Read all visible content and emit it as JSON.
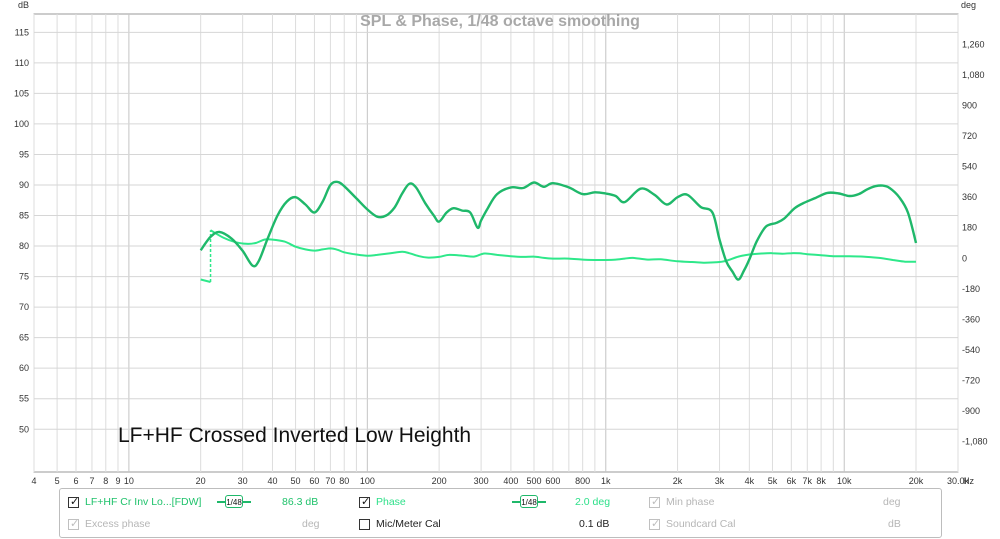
{
  "chart_data": {
    "type": "line",
    "title": "SPL & Phase, 1/48 octave smoothing",
    "annotation": "LF+HF Crossed Inverted Low Heighth",
    "x_unit": "Hz",
    "y_left_unit": "dB",
    "y_right_unit": "deg",
    "x_scale": "log",
    "xlim": [
      4,
      30000
    ],
    "ylim_left": [
      43,
      118
    ],
    "ylim_right": [
      -1260,
      1440
    ],
    "grid": true,
    "x_ticks": [
      {
        "v": 4,
        "label": "4"
      },
      {
        "v": 5,
        "label": "5"
      },
      {
        "v": 6,
        "label": "6"
      },
      {
        "v": 7,
        "label": "7"
      },
      {
        "v": 8,
        "label": "8"
      },
      {
        "v": 9,
        "label": "9"
      },
      {
        "v": 10,
        "label": "10"
      },
      {
        "v": 20,
        "label": "20"
      },
      {
        "v": 30,
        "label": "30"
      },
      {
        "v": 40,
        "label": "40"
      },
      {
        "v": 50,
        "label": "50"
      },
      {
        "v": 60,
        "label": "60"
      },
      {
        "v": 70,
        "label": "70"
      },
      {
        "v": 80,
        "label": "80"
      },
      {
        "v": 100,
        "label": "100"
      },
      {
        "v": 200,
        "label": "200"
      },
      {
        "v": 300,
        "label": "300"
      },
      {
        "v": 400,
        "label": "400"
      },
      {
        "v": 500,
        "label": "500"
      },
      {
        "v": 600,
        "label": "600"
      },
      {
        "v": 800,
        "label": "800"
      },
      {
        "v": 1000,
        "label": "1k"
      },
      {
        "v": 2000,
        "label": "2k"
      },
      {
        "v": 3000,
        "label": "3k"
      },
      {
        "v": 4000,
        "label": "4k"
      },
      {
        "v": 5000,
        "label": "5k"
      },
      {
        "v": 6000,
        "label": "6k"
      },
      {
        "v": 7000,
        "label": "7k"
      },
      {
        "v": 8000,
        "label": "8k"
      },
      {
        "v": 10000,
        "label": "10k"
      },
      {
        "v": 20000,
        "label": "20k"
      },
      {
        "v": 30000,
        "label": "30.0k"
      }
    ],
    "y_left_ticks": [
      {
        "v": 115,
        "label": "115"
      },
      {
        "v": 110,
        "label": "110"
      },
      {
        "v": 105,
        "label": "105"
      },
      {
        "v": 100,
        "label": "100"
      },
      {
        "v": 95,
        "label": "95"
      },
      {
        "v": 90,
        "label": "90"
      },
      {
        "v": 85,
        "label": "85"
      },
      {
        "v": 80,
        "label": "80"
      },
      {
        "v": 75,
        "label": "75"
      },
      {
        "v": 70,
        "label": "70"
      },
      {
        "v": 65,
        "label": "65"
      },
      {
        "v": 60,
        "label": "60"
      },
      {
        "v": 55,
        "label": "55"
      },
      {
        "v": 50,
        "label": "50"
      }
    ],
    "y_right_ticks": [
      {
        "v": 1260,
        "label": "1,260"
      },
      {
        "v": 1080,
        "label": "1,080"
      },
      {
        "v": 900,
        "label": "900"
      },
      {
        "v": 720,
        "label": "720"
      },
      {
        "v": 540,
        "label": "540"
      },
      {
        "v": 360,
        "label": "360"
      },
      {
        "v": 180,
        "label": "180"
      },
      {
        "v": 0,
        "label": "0"
      },
      {
        "v": -180,
        "label": "-180"
      },
      {
        "v": -360,
        "label": "-360"
      },
      {
        "v": -540,
        "label": "-540"
      },
      {
        "v": -720,
        "label": "-720"
      },
      {
        "v": -900,
        "label": "-900"
      },
      {
        "v": -1080,
        "label": "-1,080"
      }
    ],
    "series": [
      {
        "name": "LF+HF Cr Inv Lo...[FDW]",
        "axis": "left",
        "color": "#1fb86a",
        "points": [
          [
            20,
            79.3
          ],
          [
            22,
            81.5
          ],
          [
            24,
            82.3
          ],
          [
            27,
            81.2
          ],
          [
            30,
            79.2
          ],
          [
            33,
            76.8
          ],
          [
            35,
            77.5
          ],
          [
            38,
            81
          ],
          [
            42,
            85
          ],
          [
            46,
            87.3
          ],
          [
            50,
            88
          ],
          [
            55,
            86.8
          ],
          [
            60,
            85.5
          ],
          [
            65,
            87.3
          ],
          [
            70,
            90
          ],
          [
            75,
            90.5
          ],
          [
            80,
            89.8
          ],
          [
            90,
            87.8
          ],
          [
            100,
            86
          ],
          [
            110,
            84.8
          ],
          [
            120,
            85
          ],
          [
            130,
            86.3
          ],
          [
            140,
            88.6
          ],
          [
            150,
            90.2
          ],
          [
            160,
            89.6
          ],
          [
            175,
            87
          ],
          [
            190,
            85
          ],
          [
            200,
            84
          ],
          [
            215,
            85.5
          ],
          [
            230,
            86.2
          ],
          [
            250,
            85.8
          ],
          [
            270,
            85.5
          ],
          [
            290,
            83
          ],
          [
            300,
            84.2
          ],
          [
            320,
            86.2
          ],
          [
            350,
            88.5
          ],
          [
            400,
            89.6
          ],
          [
            450,
            89.5
          ],
          [
            500,
            90.4
          ],
          [
            550,
            89.7
          ],
          [
            600,
            90.3
          ],
          [
            700,
            89.6
          ],
          [
            800,
            88.5
          ],
          [
            900,
            88.8
          ],
          [
            1000,
            88.6
          ],
          [
            1100,
            88.2
          ],
          [
            1200,
            87.2
          ],
          [
            1400,
            89.4
          ],
          [
            1600,
            88.4
          ],
          [
            1800,
            86.8
          ],
          [
            2000,
            88
          ],
          [
            2200,
            88.4
          ],
          [
            2500,
            86.4
          ],
          [
            2800,
            85.5
          ],
          [
            3000,
            81
          ],
          [
            3200,
            77.5
          ],
          [
            3400,
            75.8
          ],
          [
            3600,
            74.5
          ],
          [
            3800,
            76
          ],
          [
            4000,
            77.8
          ],
          [
            4300,
            80.8
          ],
          [
            4700,
            83.2
          ],
          [
            5200,
            83.8
          ],
          [
            5600,
            84.5
          ],
          [
            6200,
            86.2
          ],
          [
            6800,
            87.1
          ],
          [
            7500,
            87.8
          ],
          [
            8500,
            88.7
          ],
          [
            9500,
            88.6
          ],
          [
            10500,
            88.2
          ],
          [
            11500,
            88.5
          ],
          [
            12500,
            89.3
          ],
          [
            13500,
            89.8
          ],
          [
            14500,
            89.9
          ],
          [
            15500,
            89.5
          ],
          [
            17000,
            88
          ],
          [
            18500,
            85.5
          ],
          [
            20000,
            80.5
          ]
        ]
      },
      {
        "name": "Phase",
        "axis": "right",
        "color": "#2ee88a",
        "points": [
          [
            20,
            -125
          ],
          [
            22,
            -140
          ],
          [
            22,
            165
          ],
          [
            25,
            120
          ],
          [
            28,
            95
          ],
          [
            31,
            85
          ],
          [
            34,
            90
          ],
          [
            37,
            110
          ],
          [
            40,
            110
          ],
          [
            45,
            98
          ],
          [
            50,
            68
          ],
          [
            55,
            52
          ],
          [
            60,
            45
          ],
          [
            65,
            52
          ],
          [
            70,
            58
          ],
          [
            75,
            50
          ],
          [
            80,
            35
          ],
          [
            90,
            22
          ],
          [
            100,
            15
          ],
          [
            110,
            20
          ],
          [
            125,
            30
          ],
          [
            140,
            38
          ],
          [
            150,
            30
          ],
          [
            165,
            12
          ],
          [
            180,
            4
          ],
          [
            200,
            8
          ],
          [
            220,
            20
          ],
          [
            250,
            16
          ],
          [
            280,
            10
          ],
          [
            310,
            28
          ],
          [
            350,
            20
          ],
          [
            400,
            12
          ],
          [
            450,
            8
          ],
          [
            500,
            10
          ],
          [
            550,
            2
          ],
          [
            600,
            -2
          ],
          [
            700,
            -2
          ],
          [
            800,
            -8
          ],
          [
            900,
            -10
          ],
          [
            1000,
            -10
          ],
          [
            1100,
            -8
          ],
          [
            1200,
            -2
          ],
          [
            1300,
            2
          ],
          [
            1500,
            -8
          ],
          [
            1700,
            -6
          ],
          [
            2000,
            -18
          ],
          [
            2300,
            -22
          ],
          [
            2600,
            -26
          ],
          [
            2900,
            -24
          ],
          [
            3200,
            -15
          ],
          [
            3600,
            10
          ],
          [
            4000,
            22
          ],
          [
            4500,
            28
          ],
          [
            5000,
            30
          ],
          [
            5500,
            27
          ],
          [
            6000,
            30
          ],
          [
            6500,
            29
          ],
          [
            7000,
            24
          ],
          [
            8000,
            18
          ],
          [
            9000,
            12
          ],
          [
            10000,
            12
          ],
          [
            12000,
            10
          ],
          [
            14000,
            2
          ],
          [
            16000,
            -10
          ],
          [
            18000,
            -20
          ],
          [
            20000,
            -20
          ]
        ]
      }
    ]
  },
  "legend": {
    "row1": {
      "trace_label": "LF+HF Cr Inv Lo...[FDW]",
      "trace_smoothing": "1/48",
      "trace_value": "86.3 dB",
      "phase_label": "Phase",
      "phase_smoothing": "1/48",
      "phase_value": "2.0 deg",
      "minphase_label": "Min phase",
      "minphase_unit": "deg"
    },
    "row2": {
      "excess_label": "Excess phase",
      "excess_unit": "deg",
      "mic_label": "Mic/Meter Cal",
      "mic_value": "0.1 dB",
      "soundcard_label": "Soundcard Cal",
      "soundcard_unit": "dB"
    }
  }
}
